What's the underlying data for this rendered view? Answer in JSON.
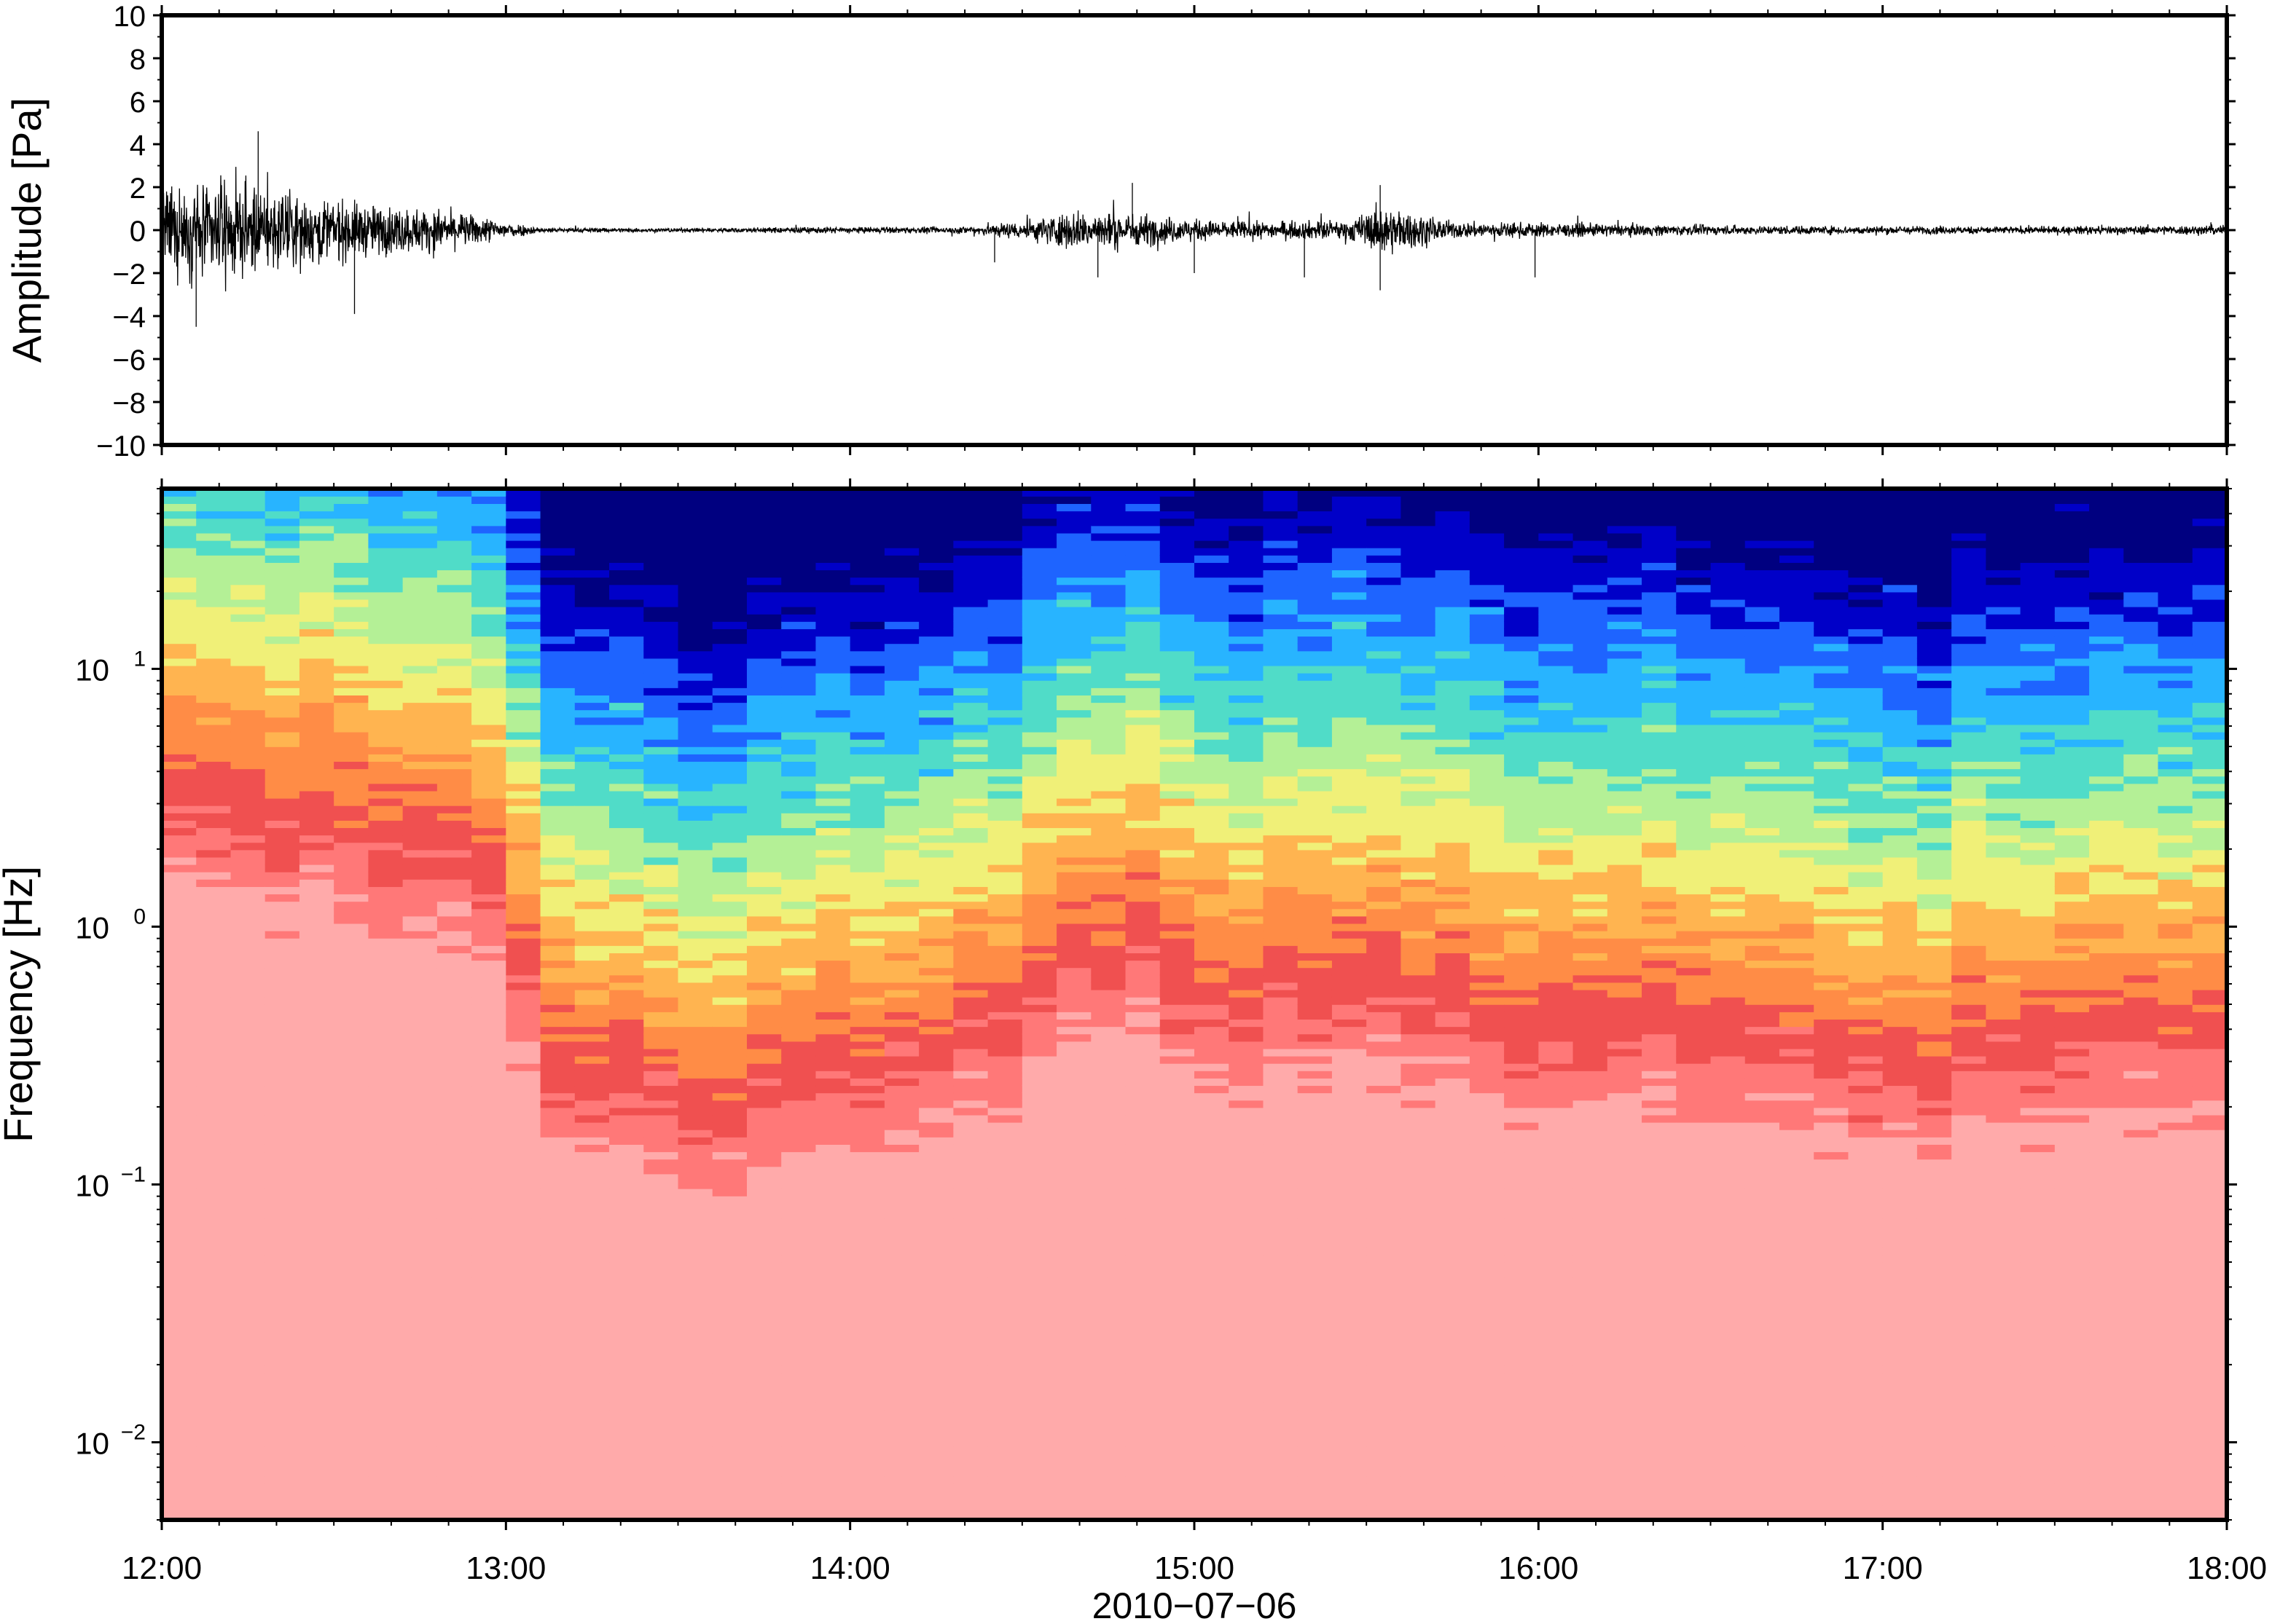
{
  "chart_data": [
    {
      "type": "line",
      "panel": "waveform",
      "ylabel": "Amplitude [Pa]",
      "ylim": [
        -10,
        10
      ],
      "yticks": [
        10,
        8,
        6,
        4,
        2,
        0,
        -2,
        -4,
        -6,
        -8,
        -10
      ],
      "ytick_labels": [
        "10",
        "8",
        "6",
        "4",
        "2",
        "0",
        "−2",
        "−4",
        "−6",
        "−8",
        "−10"
      ],
      "xlim": [
        "12:00",
        "18:00"
      ],
      "line_color": "#000000",
      "envelope": {
        "description": "waveform amplitude envelope over time",
        "hours": [
          12.0,
          12.2,
          12.4,
          12.6,
          12.8,
          12.95,
          13.1,
          13.5,
          13.9,
          14.3,
          14.5,
          14.65,
          14.85,
          15.0,
          15.2,
          15.45,
          15.55,
          15.75,
          16.0,
          16.5,
          17.0,
          17.5,
          18.0
        ],
        "amplitude_pa": [
          4.0,
          4.5,
          3.5,
          2.5,
          2.0,
          1.2,
          0.25,
          0.2,
          0.3,
          0.3,
          0.9,
          1.9,
          1.6,
          1.0,
          0.8,
          1.0,
          2.4,
          0.8,
          0.7,
          0.45,
          0.4,
          0.35,
          0.5
        ]
      },
      "spikes": [
        {
          "hour": 12.28,
          "value": 4.6
        },
        {
          "hour": 12.1,
          "value": -4.5
        },
        {
          "hour": 12.56,
          "value": -3.9
        },
        {
          "hour": 14.42,
          "value": -1.5
        },
        {
          "hour": 14.72,
          "value": -2.2
        },
        {
          "hour": 14.82,
          "value": 2.2
        },
        {
          "hour": 15.0,
          "value": -2.0
        },
        {
          "hour": 15.32,
          "value": -2.2
        },
        {
          "hour": 15.54,
          "value": 2.1
        },
        {
          "hour": 15.54,
          "value": -2.8
        },
        {
          "hour": 15.99,
          "value": -2.2
        }
      ]
    },
    {
      "type": "heatmap",
      "panel": "spectrogram",
      "ylabel": "Frequency [Hz]",
      "xlabel": "2010−07−06",
      "yscale": "log",
      "ylim": [
        0.005,
        50
      ],
      "yticks": [
        {
          "value": 10,
          "base": "10",
          "exp": "1"
        },
        {
          "value": 1,
          "base": "10",
          "exp": "0"
        },
        {
          "value": 0.1,
          "base": "10",
          "exp": "−1"
        },
        {
          "value": 0.01,
          "base": "10",
          "exp": "−2"
        }
      ],
      "xlim": [
        "12:00",
        "18:00"
      ],
      "xticks": [
        "12:00",
        "13:00",
        "14:00",
        "15:00",
        "16:00",
        "17:00",
        "18:00"
      ],
      "colormap": [
        "#000080",
        "#0000c8",
        "#1e64ff",
        "#28b4ff",
        "#50dcc8",
        "#b4f096",
        "#f0f078",
        "#ffb450",
        "#ff8c46",
        "#f05050",
        "#ff7878",
        "#ffaaaa"
      ],
      "intensity_profile": {
        "hours": [
          12.0,
          12.25,
          12.5,
          12.75,
          13.0,
          13.1,
          13.5,
          14.0,
          14.4,
          14.6,
          14.8,
          15.0,
          15.2,
          15.5,
          15.8,
          16.0,
          16.5,
          17.0,
          17.5,
          18.0
        ],
        "energy": [
          1.0,
          1.0,
          0.95,
          0.9,
          0.85,
          0.42,
          0.3,
          0.38,
          0.45,
          0.62,
          0.72,
          0.6,
          0.55,
          0.6,
          0.55,
          0.48,
          0.45,
          0.42,
          0.42,
          0.47
        ]
      }
    }
  ]
}
